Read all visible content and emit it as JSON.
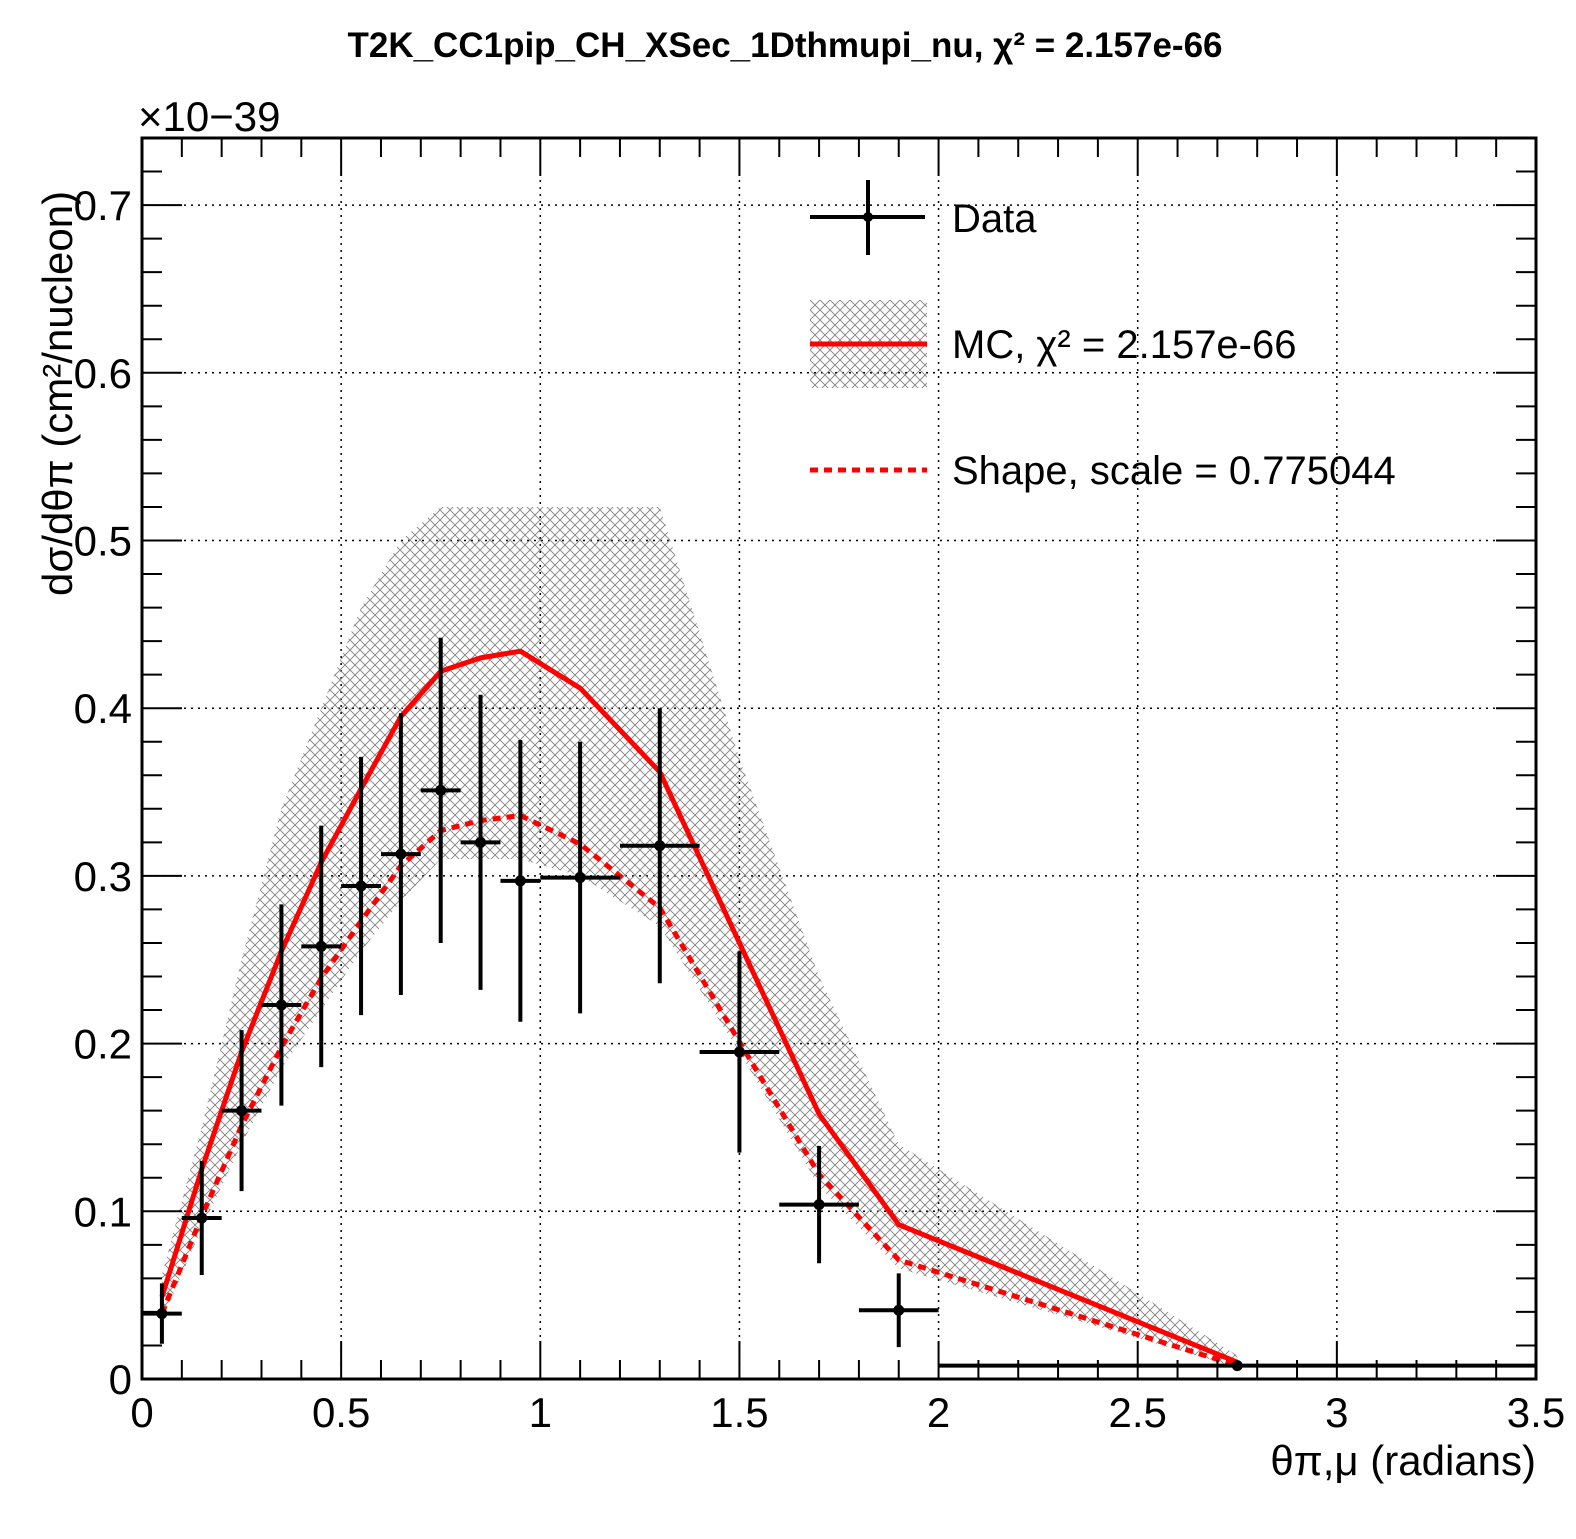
{
  "chart_data": {
    "type": "line",
    "title": "T2K_CC1pip_CH_XSec_1Dthmupi_nu, χ² = 2.157e-66",
    "xlabel": "θπ,μ (radians)",
    "ylabel": "dσ/dθπ (cm²/nucleon)",
    "y_exponent": "×10−39",
    "xlim": [
      0,
      3.5
    ],
    "ylim": [
      0,
      0.74
    ],
    "x_ticks": [
      "0",
      "0.5",
      "1",
      "1.5",
      "2",
      "2.5",
      "3",
      "3.5"
    ],
    "y_ticks": [
      "0",
      "0.1",
      "0.2",
      "0.3",
      "0.4",
      "0.5",
      "0.6",
      "0.7"
    ],
    "grid": true,
    "legend_position": "top-right",
    "colors": {
      "mc": "#ff0000",
      "data": "#000000",
      "band": "#808080"
    },
    "legend": {
      "data": "Data",
      "mc": "MC, χ² = 2.157e-66",
      "shape": "Shape, scale = 0.775044"
    },
    "series": [
      {
        "name": "Data",
        "kind": "points",
        "x": [
          0.05,
          0.15,
          0.25,
          0.35,
          0.45,
          0.55,
          0.65,
          0.75,
          0.85,
          0.95,
          1.1,
          1.3,
          1.5,
          1.7,
          1.9,
          2.75
        ],
        "xlo": [
          0.0,
          0.1,
          0.2,
          0.3,
          0.4,
          0.5,
          0.6,
          0.7,
          0.8,
          0.9,
          1.0,
          1.2,
          1.4,
          1.6,
          1.8,
          2.0
        ],
        "xhi": [
          0.1,
          0.2,
          0.3,
          0.4,
          0.5,
          0.6,
          0.7,
          0.8,
          0.9,
          1.0,
          1.2,
          1.4,
          1.6,
          1.8,
          2.0,
          3.5
        ],
        "y": [
          0.039,
          0.096,
          0.16,
          0.223,
          0.258,
          0.294,
          0.313,
          0.351,
          0.32,
          0.297,
          0.299,
          0.318,
          0.195,
          0.104,
          0.041,
          0.008
        ],
        "yerr": [
          0.018,
          0.034,
          0.048,
          0.06,
          0.072,
          0.077,
          0.084,
          0.091,
          0.088,
          0.084,
          0.081,
          0.082,
          0.06,
          0.035,
          0.022,
          0.001
        ]
      },
      {
        "name": "MC, χ² = 2.157e-66",
        "kind": "line",
        "x": [
          0.05,
          0.15,
          0.25,
          0.35,
          0.45,
          0.55,
          0.65,
          0.75,
          0.85,
          0.95,
          1.1,
          1.3,
          1.5,
          1.7,
          1.9,
          2.75
        ],
        "y": [
          0.049,
          0.125,
          0.195,
          0.255,
          0.308,
          0.352,
          0.395,
          0.422,
          0.43,
          0.434,
          0.412,
          0.362,
          0.26,
          0.158,
          0.092,
          0.01
        ],
        "band_lo": [
          0.035,
          0.09,
          0.14,
          0.185,
          0.22,
          0.255,
          0.285,
          0.31,
          0.31,
          0.31,
          0.3,
          0.27,
          0.195,
          0.115,
          0.066,
          0.007
        ],
        "band_hi": [
          0.062,
          0.15,
          0.25,
          0.34,
          0.4,
          0.46,
          0.5,
          0.52,
          0.52,
          0.52,
          0.52,
          0.52,
          0.37,
          0.24,
          0.14,
          0.014
        ]
      },
      {
        "name": "Shape, scale = 0.775044",
        "kind": "dashed-line",
        "x": [
          0.05,
          0.15,
          0.25,
          0.35,
          0.45,
          0.55,
          0.65,
          0.75,
          0.85,
          0.95,
          1.1,
          1.2,
          1.3,
          1.5,
          1.7,
          1.9,
          2.75
        ],
        "y": [
          0.039,
          0.097,
          0.151,
          0.198,
          0.239,
          0.273,
          0.306,
          0.327,
          0.333,
          0.336,
          0.319,
          0.3,
          0.281,
          0.201,
          0.122,
          0.071,
          0.008
        ]
      }
    ]
  }
}
